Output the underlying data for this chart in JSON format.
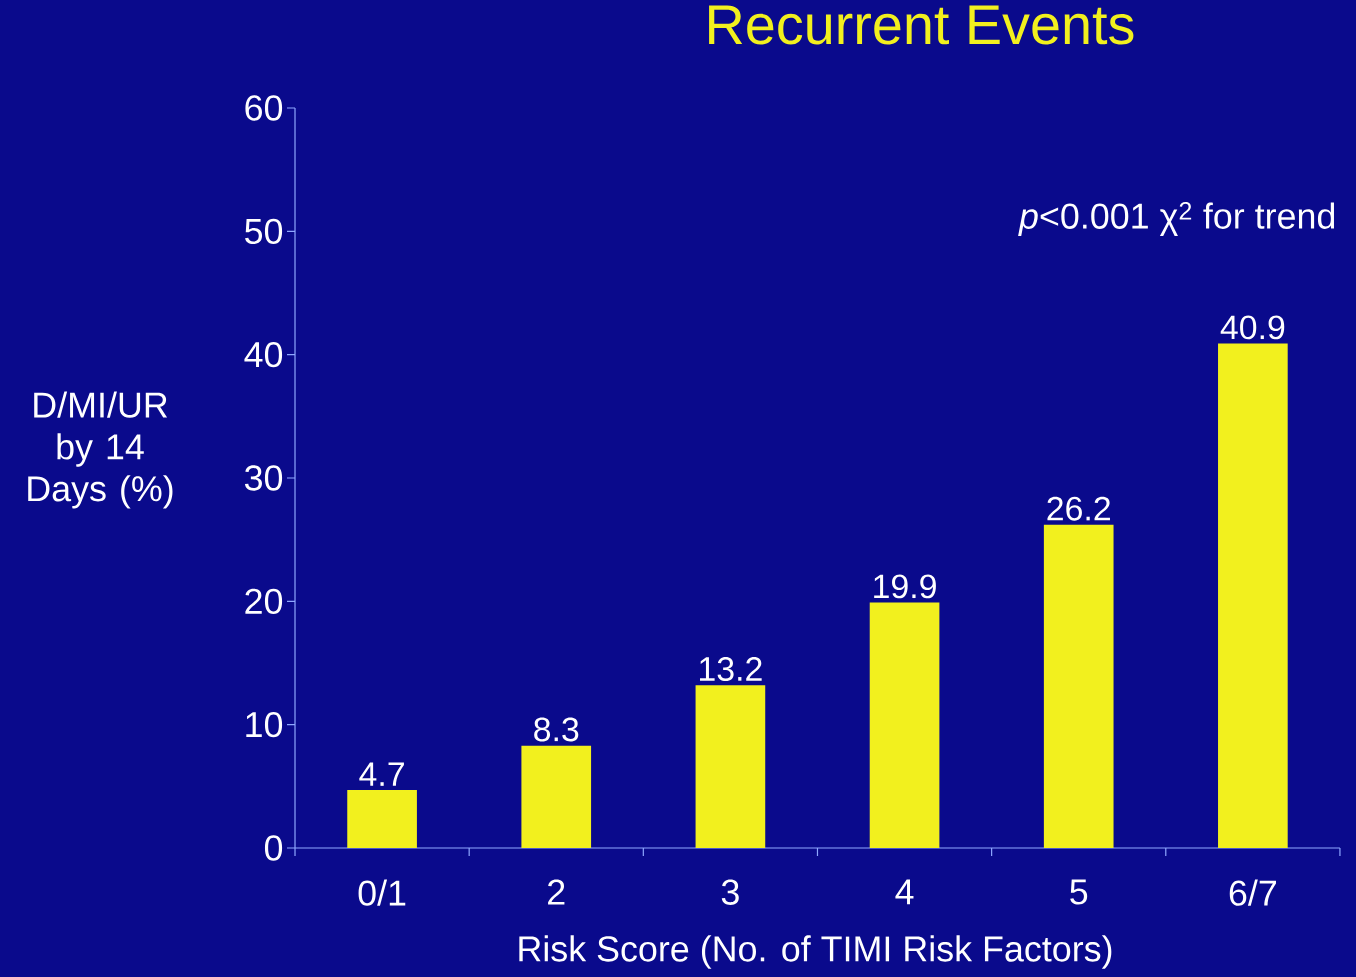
{
  "chart_data": {
    "type": "bar",
    "title": "Recurrent Events",
    "xlabel": "Risk Score (No. of TIMI Risk Factors)",
    "ylabel": "D/MI/UR by 14 Days (%)",
    "categories": [
      "0/1",
      "2",
      "3",
      "4",
      "5",
      "6/7"
    ],
    "values": [
      4.7,
      8.3,
      13.2,
      19.9,
      26.2,
      40.9
    ],
    "color": "#f2f01e",
    "ylim": [
      0,
      60
    ],
    "yticks": [
      0,
      10,
      20,
      30,
      40,
      50,
      60
    ],
    "data_labels": true,
    "grid": false,
    "annotations": [
      "*p*<0.001 χ$^{2}$ for trend"
    ]
  }
}
